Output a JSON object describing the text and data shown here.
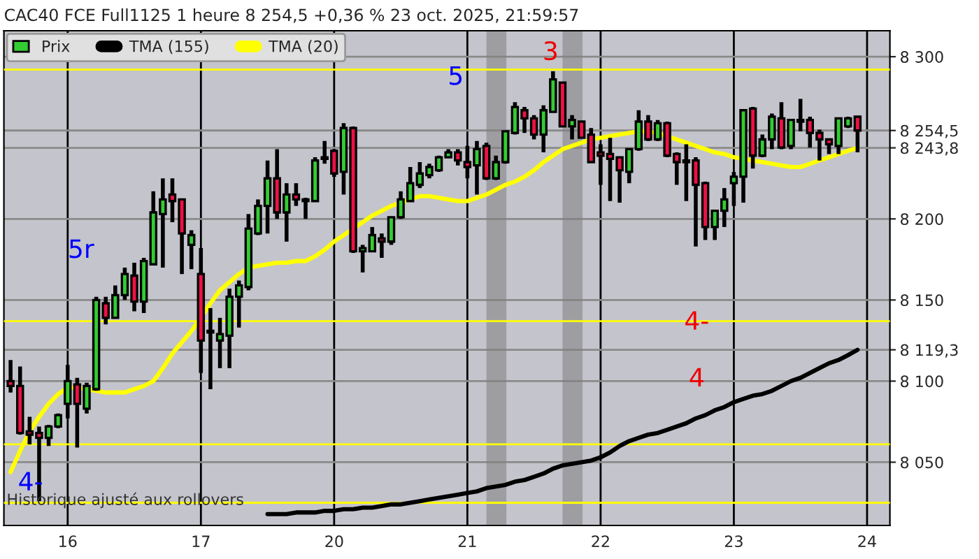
{
  "chart_data": {
    "type": "candlestick",
    "title": "CAC40 FCE Full1125 1 heure 8 254,5 +0,36 % 23 oct. 2025, 21:59:57",
    "categories": [
      null,
      null,
      null,
      null,
      null,
      null,
      "16",
      null,
      null,
      null,
      null,
      null,
      null,
      null,
      null,
      null,
      null,
      null,
      null,
      null,
      "17",
      null,
      null,
      null,
      null,
      null,
      null,
      null,
      null,
      null,
      null,
      null,
      null,
      null,
      "20",
      null,
      null,
      null,
      null,
      null,
      null,
      null,
      null,
      null,
      null,
      null,
      null,
      null,
      "21",
      null,
      null,
      null,
      null,
      null,
      null,
      null,
      null,
      null,
      null,
      null,
      null,
      null,
      "22",
      null,
      null,
      null,
      null,
      null,
      null,
      null,
      null,
      null,
      null,
      null,
      null,
      null,
      "23",
      null,
      null,
      null,
      null,
      null,
      null,
      null,
      null,
      null,
      null,
      null,
      null,
      null,
      "24"
    ],
    "ylim": [
      8011,
      8316
    ],
    "yticks": [
      {
        "value": 8050,
        "label": "8 050"
      },
      {
        "value": 8100,
        "label": "8 100"
      },
      {
        "value": 8119.3,
        "label": "8 119,3"
      },
      {
        "value": 8150,
        "label": "8 150"
      },
      {
        "value": 8200,
        "label": "8 200"
      },
      {
        "value": 8243.8,
        "label": "8 243,8"
      },
      {
        "value": 8254.5,
        "label": "8 254,5"
      },
      {
        "value": 8300,
        "label": "8 300"
      }
    ],
    "grid": true,
    "legend": "top left",
    "series": [
      {
        "name": "Prix",
        "color": "#33cc33",
        "ohlc": [
          [
            8100,
            8113,
            8093,
            8097
          ],
          [
            8097,
            8109,
            8067,
            8068
          ],
          [
            8069,
            8078,
            8061,
            8067
          ],
          [
            8068,
            8072,
            8026,
            8065
          ],
          [
            8065,
            8073,
            8060,
            8072
          ],
          [
            8072,
            8080,
            8071,
            8079
          ],
          [
            8086,
            8110,
            8077,
            8100
          ],
          [
            8098,
            8102,
            8059,
            8086
          ],
          [
            8083,
            8099,
            8080,
            8097
          ],
          [
            8095,
            8152,
            8094,
            8150
          ],
          [
            8148,
            8152,
            8135,
            8139
          ],
          [
            8139,
            8159,
            8139,
            8153
          ],
          [
            8153,
            8170,
            8150,
            8166
          ],
          [
            8165,
            8173,
            8143,
            8149
          ],
          [
            8149,
            8176,
            8142,
            8174
          ],
          [
            8172,
            8217,
            8172,
            8204
          ],
          [
            8203,
            8225,
            8170,
            8212
          ],
          [
            8215,
            8225,
            8198,
            8211
          ],
          [
            8212,
            8212,
            8166,
            8191
          ],
          [
            8184,
            8193,
            8169,
            8190
          ],
          [
            8166,
            8182,
            8105,
            8125
          ],
          [
            8130,
            8145,
            8095,
            8131
          ],
          [
            8125,
            8139,
            8108,
            8129
          ],
          [
            8128,
            8157,
            8108,
            8152
          ],
          [
            8152,
            8162,
            8133,
            8159
          ],
          [
            8158,
            8203,
            8156,
            8194
          ],
          [
            8191,
            8212,
            8190,
            8208
          ],
          [
            8208,
            8236,
            8191,
            8225
          ],
          [
            8225,
            8243,
            8200,
            8204
          ],
          [
            8204,
            8222,
            8186,
            8215
          ],
          [
            8215,
            8222,
            8208,
            8212
          ],
          [
            8212,
            8213,
            8200,
            8211
          ],
          [
            8211,
            8238,
            8211,
            8236
          ],
          [
            8237,
            8248,
            8234,
            8238
          ],
          [
            8242,
            8243,
            8226,
            8228
          ],
          [
            8229,
            8259,
            8215,
            8256
          ],
          [
            8256,
            8257,
            8179,
            8180
          ],
          [
            8180,
            8184,
            8167,
            8182
          ],
          [
            8180,
            8195,
            8180,
            8190
          ],
          [
            8188,
            8191,
            8176,
            8186
          ],
          [
            8186,
            8201,
            8184,
            8201
          ],
          [
            8201,
            8217,
            8200,
            8212
          ],
          [
            8211,
            8232,
            8211,
            8222
          ],
          [
            8221,
            8235,
            8219,
            8228
          ],
          [
            8227,
            8234,
            8225,
            8232
          ],
          [
            8230,
            8239,
            8229,
            8238
          ],
          [
            8238,
            8243,
            8238,
            8241
          ],
          [
            8241,
            8243,
            8233,
            8236
          ],
          [
            8235,
            8245,
            8225,
            8232
          ],
          [
            8233,
            8248,
            8215,
            8243
          ],
          [
            8245,
            8247,
            8224,
            8225
          ],
          [
            8225,
            8239,
            8224,
            8235
          ],
          [
            8235,
            8254,
            8234,
            8254
          ],
          [
            8253,
            8272,
            8252,
            8269
          ],
          [
            8267,
            8269,
            8253,
            8262
          ],
          [
            8262,
            8264,
            8249,
            8252
          ],
          [
            8252,
            8270,
            8241,
            8267
          ],
          [
            8266,
            8291,
            8266,
            8286
          ],
          [
            8284,
            8284,
            8257,
            8257
          ],
          [
            8257,
            8264,
            8249,
            8261
          ],
          [
            8260,
            8260,
            8250,
            8250
          ],
          [
            8252,
            8256,
            8235,
            8235
          ],
          [
            8241,
            8246,
            8221,
            8239
          ],
          [
            8240,
            8250,
            8211,
            8237
          ],
          [
            8238,
            8238,
            8210,
            8230
          ],
          [
            8229,
            8243,
            8222,
            8243
          ],
          [
            8243,
            8267,
            8242,
            8260
          ],
          [
            8260,
            8264,
            8248,
            8249
          ],
          [
            8249,
            8261,
            8248,
            8259
          ],
          [
            8259,
            8260,
            8238,
            8239
          ],
          [
            8240,
            8241,
            8221,
            8235
          ],
          [
            8236,
            8246,
            8211,
            8235
          ],
          [
            8236,
            8238,
            8183,
            8221
          ],
          [
            8222,
            8223,
            8187,
            8195
          ],
          [
            8195,
            8205,
            8187,
            8205
          ],
          [
            8205,
            8219,
            8195,
            8212
          ],
          [
            8222,
            8229,
            8208,
            8226
          ],
          [
            8226,
            8267,
            8210,
            8267
          ],
          [
            8268,
            8269,
            8231,
            8239
          ],
          [
            8239,
            8252,
            8238,
            8249
          ],
          [
            8249,
            8265,
            8243,
            8263
          ],
          [
            8262,
            8272,
            8243,
            8244
          ],
          [
            8245,
            8261,
            8243,
            8261
          ],
          [
            8261,
            8274,
            8254,
            8260
          ],
          [
            8261,
            8263,
            8244,
            8253
          ],
          [
            8253,
            8255,
            8236,
            8249
          ],
          [
            8249,
            8249,
            8240,
            8246
          ],
          [
            8245,
            8262,
            8240,
            8262
          ],
          [
            8257,
            8263,
            8256,
            8262
          ],
          [
            8263,
            8263,
            8241,
            8254.5
          ],
          null
        ],
        "colors": [
          "#ee1144",
          "#ee1144",
          "#ee1144",
          "#ee1144",
          "#33cc33",
          "#33cc33",
          "#33cc33",
          "#ee1144",
          "#33cc33",
          "#33cc33",
          "#ee1144",
          "#33cc33",
          "#33cc33",
          "#ee1144",
          "#33cc33",
          "#33cc33",
          "#33cc33",
          "#ee1144",
          "#ee1144",
          "#33cc33",
          "#ee1144",
          "#33cc33",
          "#33cc33",
          "#33cc33",
          "#33cc33",
          "#33cc33",
          "#33cc33",
          "#33cc33",
          "#ee1144",
          "#33cc33",
          "#ee1144",
          "#ee1144",
          "#33cc33",
          "#33cc33",
          "#ee1144",
          "#33cc33",
          "#ee1144",
          "#33cc33",
          "#33cc33",
          "#ee1144",
          "#33cc33",
          "#33cc33",
          "#33cc33",
          "#33cc33",
          "#33cc33",
          "#33cc33",
          "#33cc33",
          "#ee1144",
          "#ee1144",
          "#33cc33",
          "#ee1144",
          "#33cc33",
          "#33cc33",
          "#33cc33",
          "#ee1144",
          "#ee1144",
          "#33cc33",
          "#33cc33",
          "#ee1144",
          "#33cc33",
          "#ee1144",
          "#ee1144",
          "#ee1144",
          "#ee1144",
          "#ee1144",
          "#33cc33",
          "#33cc33",
          "#ee1144",
          "#33cc33",
          "#ee1144",
          "#ee1144",
          "#ee1144",
          "#ee1144",
          "#ee1144",
          "#33cc33",
          "#33cc33",
          "#33cc33",
          "#33cc33",
          "#ee1144",
          "#33cc33",
          "#33cc33",
          "#ee1144",
          "#33cc33",
          "#ee1144",
          "#ee1144",
          "#ee1144",
          "#ee1144",
          "#33cc33",
          "#33cc33",
          "#ee1144",
          null
        ]
      },
      {
        "name": "TMA (155)",
        "type": "line",
        "color": "#000000",
        "values": [
          null,
          null,
          null,
          null,
          null,
          null,
          null,
          null,
          null,
          null,
          null,
          null,
          null,
          null,
          null,
          null,
          null,
          null,
          null,
          null,
          null,
          null,
          null,
          null,
          null,
          null,
          null,
          8018,
          8018,
          8018,
          8019,
          8019,
          8019,
          8020,
          8020,
          8021,
          8021,
          8022,
          8022,
          8023,
          8024,
          8024,
          8025,
          8026,
          8027,
          8028,
          8029,
          8030,
          8031,
          8032,
          8034,
          8035,
          8036,
          8038,
          8039,
          8041,
          8043,
          8046,
          8048,
          8049,
          8050,
          8051,
          8053,
          8056,
          8060,
          8063,
          8065,
          8067,
          8068,
          8070,
          8072,
          8074,
          8077,
          8079,
          8082,
          8084,
          8087,
          8089,
          8091,
          8092,
          8094,
          8097,
          8100,
          8102,
          8105,
          8108,
          8111,
          8113,
          8116,
          8119.3,
          null
        ]
      },
      {
        "name": "TMA (20)",
        "type": "line",
        "color": "#ffff00",
        "values": [
          8044,
          8057,
          8069,
          8078,
          8086,
          8092,
          8096,
          8096,
          8095,
          8094,
          8093,
          8093,
          8093,
          8095,
          8097,
          8100,
          8108,
          8117,
          8124,
          8131,
          8139,
          8148,
          8156,
          8161,
          8166,
          8170,
          8171,
          8172,
          8173,
          8173,
          8174,
          8174,
          8177,
          8181,
          8186,
          8190,
          8194,
          8198,
          8202,
          8205,
          8208,
          8210,
          8212,
          8214,
          8214,
          8213,
          8212,
          8211,
          8211,
          8213,
          8215,
          8218,
          8221,
          8223,
          8226,
          8230,
          8235,
          8239,
          8243,
          8245,
          8247,
          8249,
          8250,
          8251,
          8252,
          8253,
          8254,
          8254,
          8253,
          8251,
          8249,
          8247,
          8245,
          8243,
          8241,
          8240,
          8238,
          8237,
          8236,
          8235,
          8234,
          8233,
          8232,
          8232,
          8234,
          8236,
          8238,
          8240,
          8242,
          8243.8,
          null
        ]
      }
    ],
    "ref_lines": [
      {
        "axis": "y",
        "value": 8292,
        "color": "#ffff00"
      },
      {
        "axis": "y",
        "value": 8137,
        "color": "#ffff00"
      },
      {
        "axis": "y",
        "value": 8061,
        "color": "#ffff00"
      },
      {
        "axis": "y",
        "value": 8025,
        "color": "#ffff00"
      }
    ],
    "annotations": [
      "4-",
      "5r",
      "5",
      "3",
      {
        "text": "4-",
        "y": 8136
      },
      "4",
      "Historique ajusté aux rollovers"
    ]
  }
}
